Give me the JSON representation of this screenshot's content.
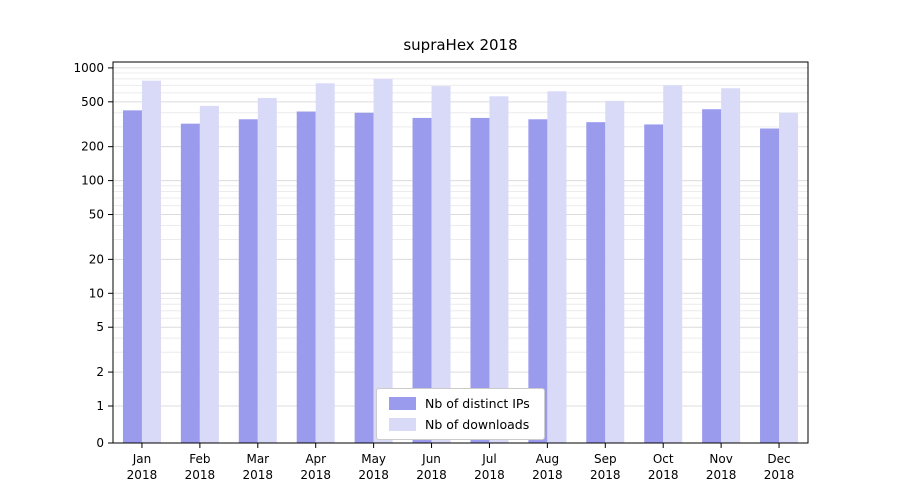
{
  "chart": {
    "title": "supraHex 2018",
    "legend": {
      "items": [
        {
          "label": "Nb of distinct IPs",
          "color": "#9b9bee"
        },
        {
          "label": "Nb of downloads",
          "color": "#d9d9f8"
        }
      ]
    }
  },
  "chart_data": {
    "type": "bar",
    "title": "supraHex 2018",
    "categories": [
      "Jan",
      "Feb",
      "Mar",
      "Apr",
      "May",
      "Jun",
      "Jul",
      "Aug",
      "Sep",
      "Oct",
      "Nov",
      "Dec"
    ],
    "category_year": "2018",
    "series": [
      {
        "name": "Nb of distinct IPs",
        "color": "#9b9bee",
        "values": [
          420,
          320,
          350,
          410,
          400,
          360,
          360,
          350,
          330,
          315,
          430,
          290
        ]
      },
      {
        "name": "Nb of downloads",
        "color": "#d9d9f8",
        "values": [
          770,
          460,
          540,
          730,
          800,
          690,
          560,
          620,
          510,
          700,
          660,
          400
        ]
      }
    ],
    "yscale": "symlog",
    "yticks": [
      0,
      1,
      2,
      5,
      10,
      20,
      50,
      100,
      200,
      500,
      1000
    ],
    "ylim": [
      0,
      1000
    ],
    "grid": "horizontal log minor+major gridlines",
    "legend_position": "bottom-center-inside"
  }
}
